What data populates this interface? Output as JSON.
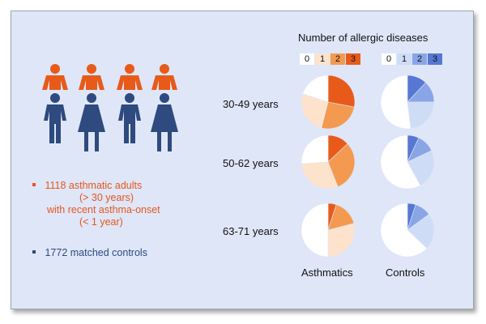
{
  "title": "Number of allergic diseases",
  "key_asthmatics": [
    {
      "label": "0",
      "color": "#ffffff"
    },
    {
      "label": "1",
      "color": "#fde3cc"
    },
    {
      "label": "2",
      "color": "#f39a50"
    },
    {
      "label": "3",
      "color": "#e85a1a"
    }
  ],
  "key_controls": [
    {
      "label": "0",
      "color": "#ffffff"
    },
    {
      "label": "1",
      "color": "#cfdcf6"
    },
    {
      "label": "2",
      "color": "#8aa5e6"
    },
    {
      "label": "3",
      "color": "#5677d2"
    }
  ],
  "bullets": {
    "asthma_line1": "1118 asthmatic adults",
    "asthma_line2": "(> 30 years)",
    "asthma_line3": "with recent asthma-onset",
    "asthma_line4": "(< 1 year)",
    "controls": "1772 matched controls"
  },
  "colors": {
    "asthma_orange": "#e4571c",
    "control_blue": "#2e4a7e",
    "background": "#dfe6f8"
  },
  "icons": [
    "person-icon-male-orange-head",
    "person-icon-female-blue",
    "person-icon-male-blue"
  ],
  "chart_data": {
    "type": "pie",
    "title": "Number of allergic diseases",
    "categories": [
      "0",
      "1",
      "2",
      "3"
    ],
    "groups": [
      "Asthmatics",
      "Controls"
    ],
    "rows": [
      "30-49 years",
      "50-62 years",
      "63-71 years"
    ],
    "series": [
      {
        "name": "Asthmatics",
        "row": "30-49 years",
        "values": [
          20,
          26,
          26,
          28
        ]
      },
      {
        "name": "Controls",
        "row": "30-49 years",
        "values": [
          52,
          23,
          13,
          12
        ]
      },
      {
        "name": "Asthmatics",
        "row": "50-62 years",
        "values": [
          26,
          30,
          31,
          13
        ]
      },
      {
        "name": "Controls",
        "row": "50-62 years",
        "values": [
          58,
          24,
          11,
          7
        ]
      },
      {
        "name": "Asthmatics",
        "row": "63-71 years",
        "values": [
          50,
          29,
          16,
          5
        ]
      },
      {
        "name": "Controls",
        "row": "63-71 years",
        "values": [
          63,
          22,
          10,
          5
        ]
      }
    ]
  }
}
